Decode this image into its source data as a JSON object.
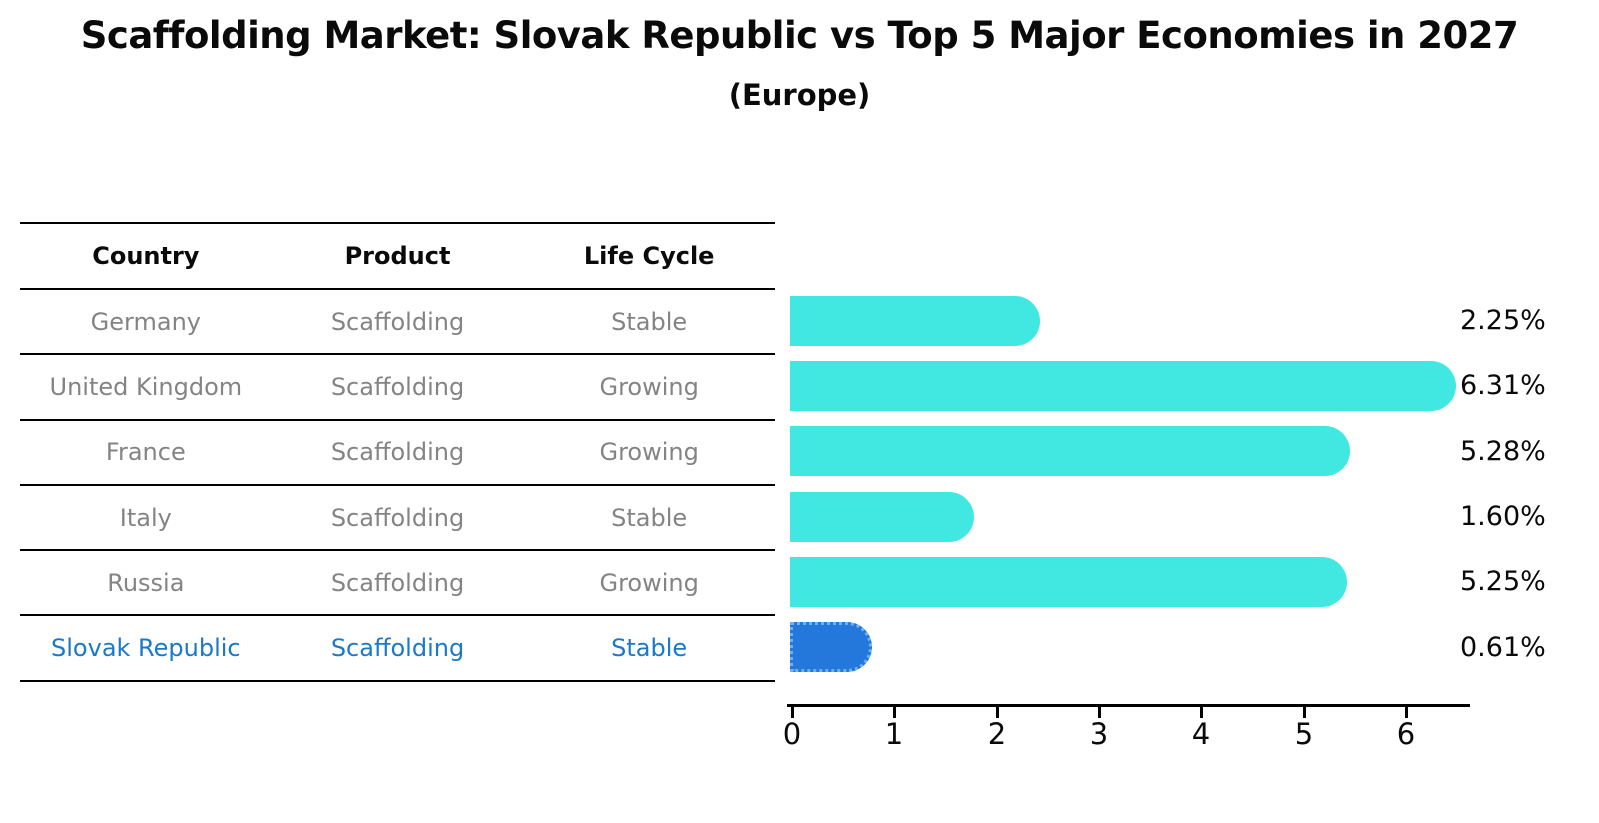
{
  "title": "Scaffolding Market: Slovak Republic vs Top 5 Major Economies in 2027",
  "subtitle": "(Europe)",
  "table": {
    "headers": [
      "Country",
      "Product",
      "Life Cycle"
    ],
    "rows": [
      {
        "country": "Germany",
        "product": "Scaffolding",
        "life_cycle": "Stable",
        "highlight": false
      },
      {
        "country": "United Kingdom",
        "product": "Scaffolding",
        "life_cycle": "Growing",
        "highlight": false
      },
      {
        "country": "France",
        "product": "Scaffolding",
        "life_cycle": "Growing",
        "highlight": false
      },
      {
        "country": "Italy",
        "product": "Scaffolding",
        "life_cycle": "Stable",
        "highlight": false
      },
      {
        "country": "Russia",
        "product": "Scaffolding",
        "life_cycle": "Growing",
        "highlight": false
      },
      {
        "country": "Slovak Republic",
        "product": "Scaffolding",
        "life_cycle": "Stable",
        "highlight": true
      }
    ]
  },
  "chart_data": {
    "type": "bar",
    "orientation": "horizontal",
    "title": "Scaffolding Market: Slovak Republic vs Top 5 Major Economies in 2027",
    "subtitle": "(Europe)",
    "categories": [
      "Germany",
      "United Kingdom",
      "France",
      "Italy",
      "Russia",
      "Slovak Republic"
    ],
    "values": [
      2.25,
      6.31,
      5.28,
      1.6,
      5.25,
      0.61
    ],
    "value_labels": [
      "2.25%",
      "6.31%",
      "5.28%",
      "1.60%",
      "5.25%",
      "0.61%"
    ],
    "xticks": [
      "0",
      "1",
      "2",
      "3",
      "4",
      "5",
      "6"
    ],
    "xlim": [
      0,
      6.63
    ],
    "grid": false,
    "legend": "none",
    "bar_color": "#41e8e1",
    "highlight_color": "#2478dc",
    "highlight_border_color": "#6db1f5",
    "highlight_index": 5
  },
  "colors": {
    "row_text": "#848484",
    "highlight_text": "#1b79c9",
    "axis": "#000000",
    "background": "#ffffff"
  }
}
